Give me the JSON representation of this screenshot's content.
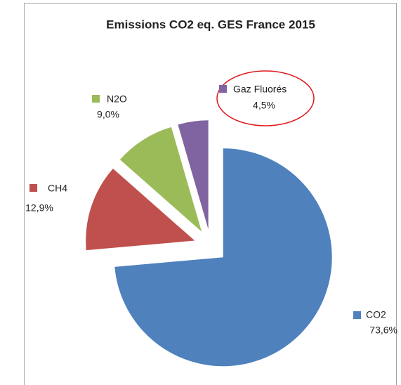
{
  "chart_data": {
    "type": "pie",
    "title": "Emissions CO2 eq. GES France 2015",
    "categories": [
      "CO2",
      "CH4",
      "N2O",
      "Gaz Fluorés"
    ],
    "values": [
      73.6,
      12.9,
      9.0,
      4.5
    ],
    "value_labels": [
      "73,6%",
      "12,9%",
      "9,0%",
      "4,5%"
    ],
    "colors": [
      "#4f81bd",
      "#c0504d",
      "#9bbb59",
      "#8064a2"
    ]
  }
}
